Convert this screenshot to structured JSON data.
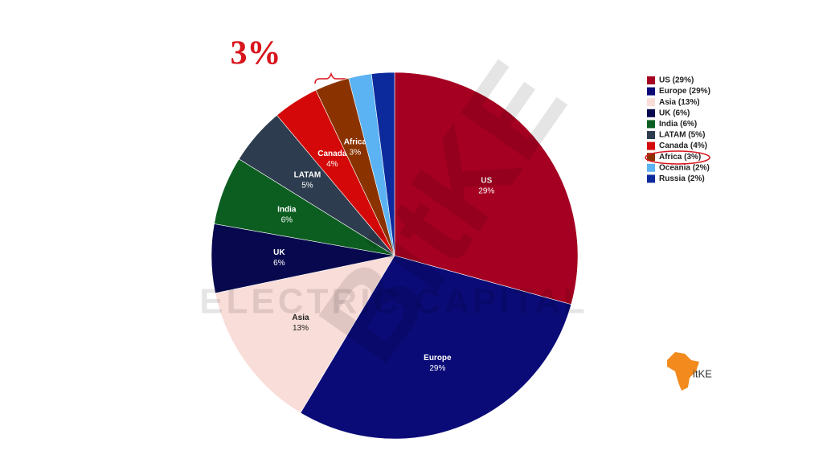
{
  "chart_data": {
    "type": "pie",
    "categories": [
      "US",
      "Europe",
      "Asia",
      "UK",
      "India",
      "LATAM",
      "Canada",
      "Africa",
      "Oceania",
      "Russia"
    ],
    "values": [
      29,
      29,
      13,
      6,
      6,
      5,
      4,
      3,
      2,
      2
    ],
    "value_labels": [
      "29%",
      "29%",
      "13%",
      "6%",
      "6%",
      "5%",
      "4%",
      "3%",
      "2%",
      "2%"
    ],
    "legend_labels": [
      "US (29%)",
      "Europe (29%)",
      "Asia (13%)",
      "UK (6%)",
      "India (6%)",
      "LATAM (5%)",
      "Canada (4%)",
      "Africa (3%)",
      "Oceania (2%)",
      "Russia (2%)"
    ],
    "colors": [
      "#a50021",
      "#0b0b78",
      "#f9ddd8",
      "#08084e",
      "#0b5e20",
      "#2d3c4e",
      "#d40808",
      "#8a3300",
      "#5cb3f3",
      "#0c2a9c"
    ],
    "legend": "right",
    "annotation": "3%",
    "watermarks": [
      "BitKE",
      "ELECTRIC CAPITAL"
    ],
    "logo": "itKE"
  }
}
